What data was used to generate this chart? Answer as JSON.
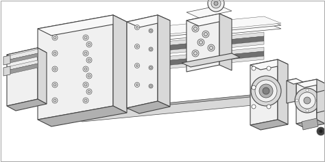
{
  "background_color": "#ffffff",
  "fig_width": 4.74,
  "fig_height": 2.37,
  "dpi": 100,
  "line_color": "#555555",
  "edge_color": "#444444",
  "light_face": "#f0f0f0",
  "mid_face": "#d8d8d8",
  "dark_face": "#b0b0b0",
  "very_light": "#f8f8f8",
  "very_dark": "#606060",
  "rail_dark": "#707070",
  "rail_light": "#e0e0e0",
  "white": "#ffffff",
  "lw_thick": 0.8,
  "lw_mid": 0.5,
  "lw_thin": 0.3
}
